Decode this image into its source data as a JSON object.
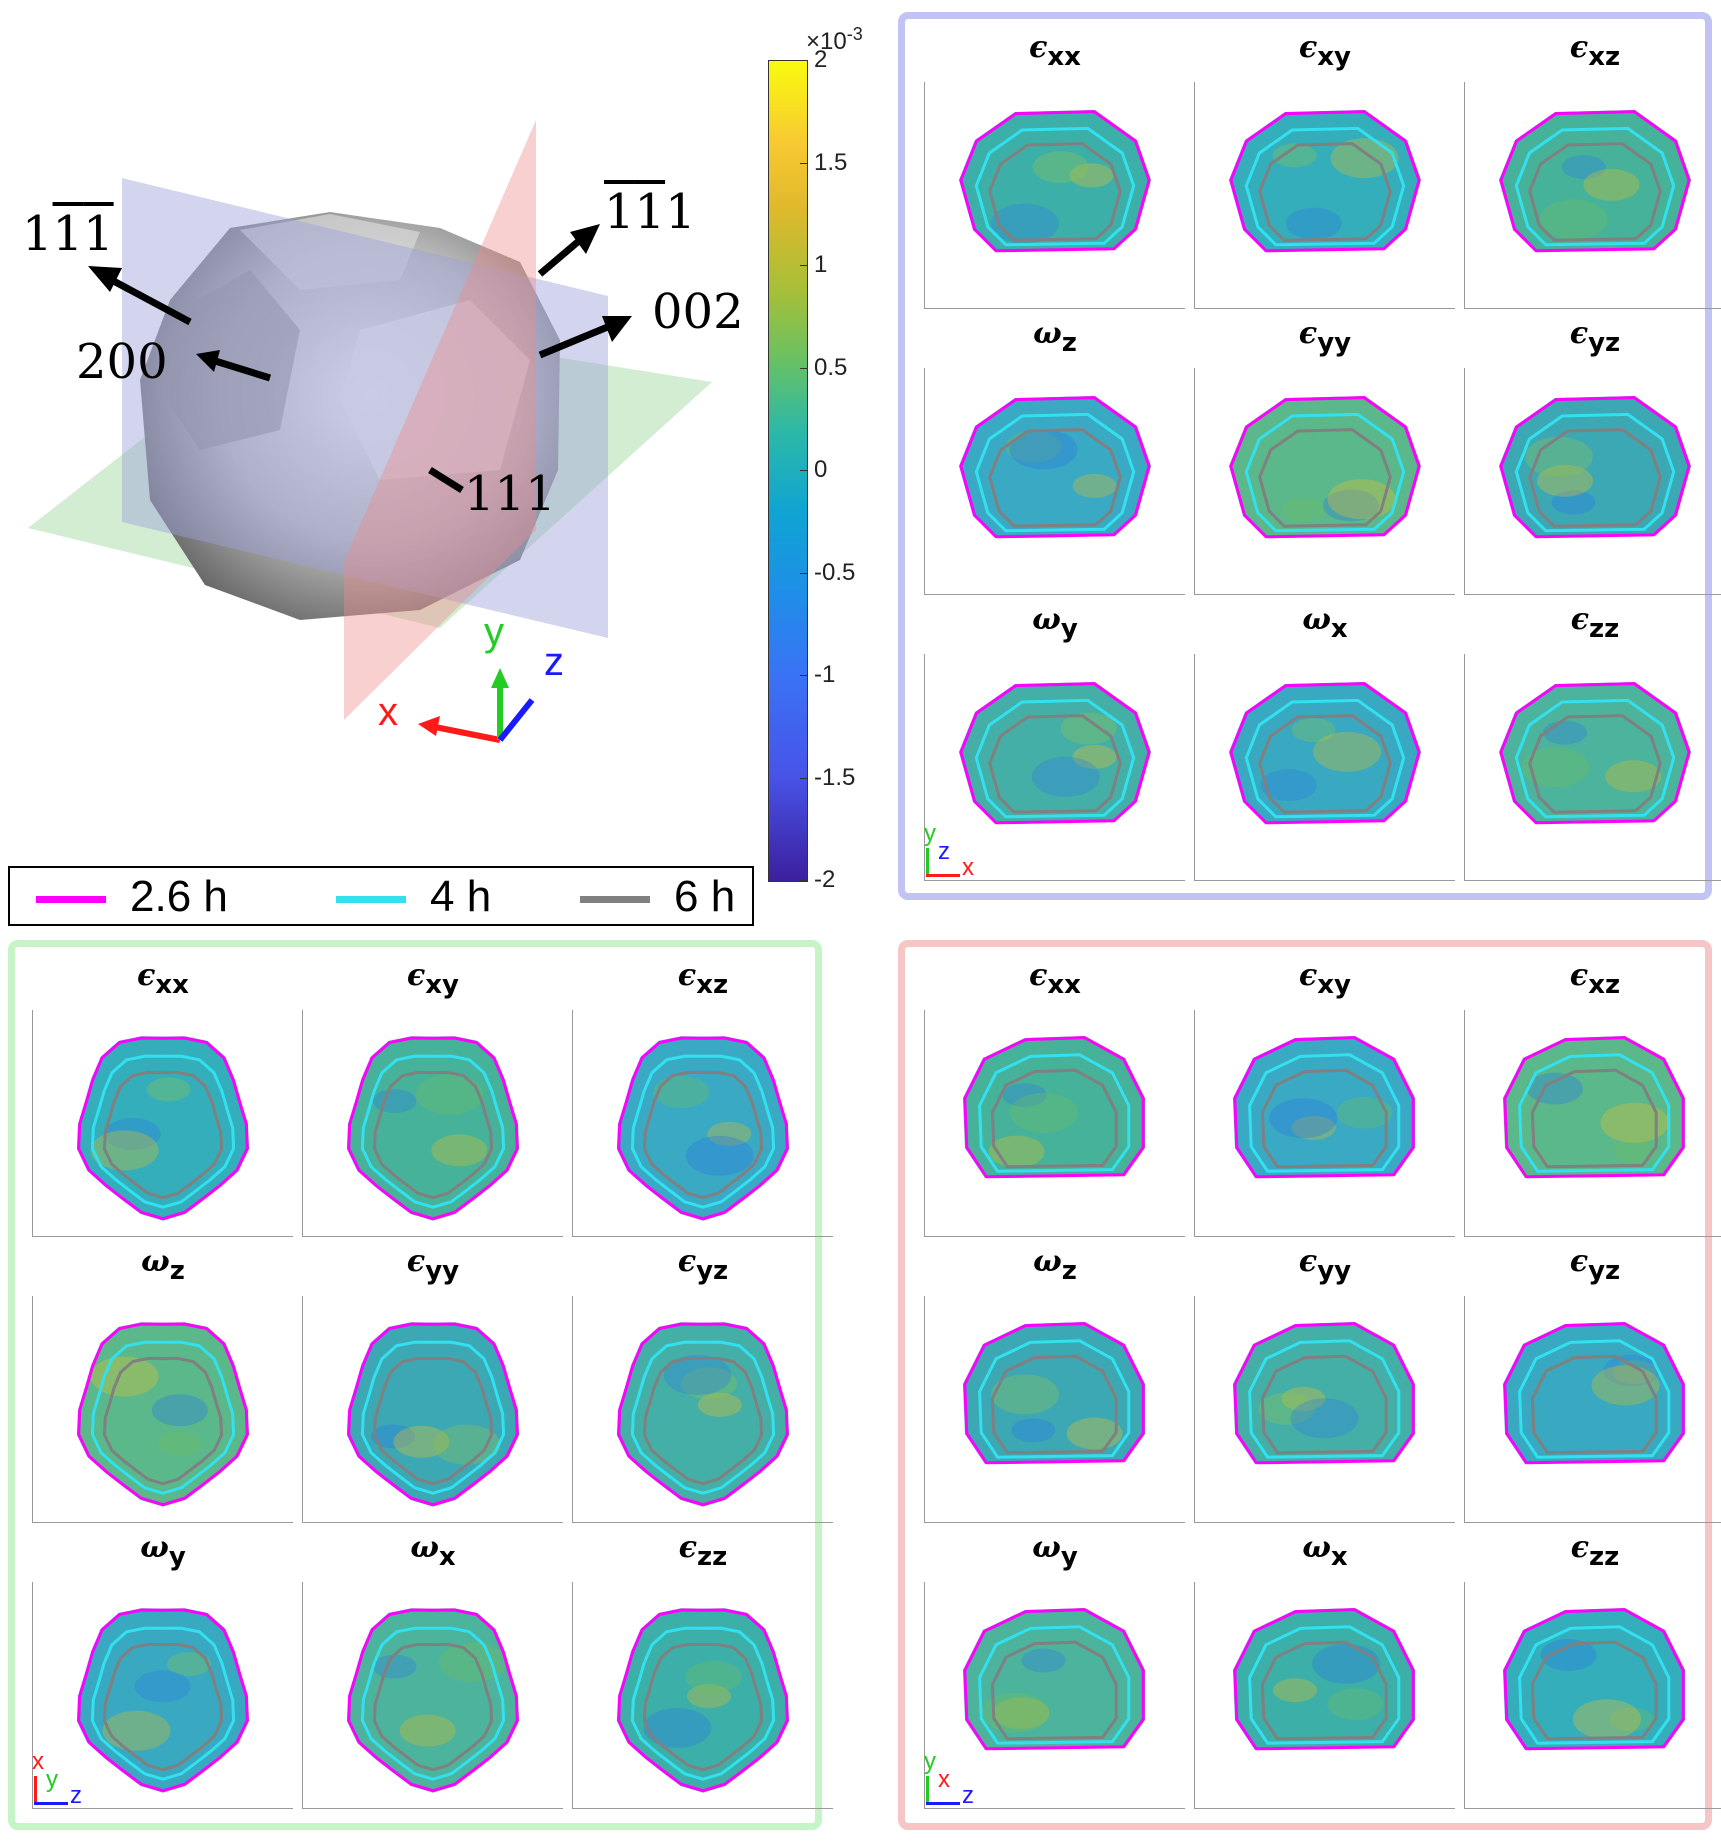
{
  "colorbar": {
    "scale": "×10",
    "scale_exp": "-3",
    "ticks": [
      "2",
      "1.5",
      "1",
      "0.5",
      "0",
      "-0.5",
      "-1",
      "-1.5",
      "-2"
    ],
    "colormap": "parula"
  },
  "crystal": {
    "directions": {
      "d1": {
        "pre": "1",
        "bar1": "1",
        "bar2": "1",
        "post": ""
      },
      "d2": {
        "bar1": "1",
        "bar2": "1",
        "post": "1"
      },
      "d200": "200",
      "d002": "002",
      "d111": "111"
    },
    "planes": {
      "blue": "#9ca2d6",
      "red": "#f08a8a",
      "green": "#9dd89d"
    },
    "axis_labels": {
      "x": "x",
      "y": "y",
      "z": "z"
    }
  },
  "legend": [
    {
      "label": "2.6 h",
      "color": "#ff00ff"
    },
    {
      "label": "4 h",
      "color": "#33e0f0"
    },
    {
      "label": "6 h",
      "color": "#808080"
    }
  ],
  "titles": [
    {
      "sym": "ϵ",
      "sub": "xx"
    },
    {
      "sym": "ϵ",
      "sub": "xy"
    },
    {
      "sym": "ϵ",
      "sub": "xz"
    },
    {
      "sym": "ω",
      "sub": "z"
    },
    {
      "sym": "ϵ",
      "sub": "yy"
    },
    {
      "sym": "ϵ",
      "sub": "yz"
    },
    {
      "sym": "ω",
      "sub": "y"
    },
    {
      "sym": "ω",
      "sub": "x"
    },
    {
      "sym": "ϵ",
      "sub": "zz"
    }
  ],
  "panels": {
    "blue": {
      "border": "#c0c3f3",
      "triad": {
        "up": "y",
        "mid": "z",
        "right": "x"
      }
    },
    "green": {
      "border": "#c6f4c6",
      "triad": {
        "up": "x",
        "mid": "y",
        "right": "z"
      }
    },
    "red": {
      "border": "#f6c6c6",
      "triad": {
        "up": "y",
        "mid": "x",
        "right": "z"
      }
    }
  },
  "triad_colors": {
    "x": "#ff1a1a",
    "y": "#22cc22",
    "z": "#1a1aff"
  }
}
